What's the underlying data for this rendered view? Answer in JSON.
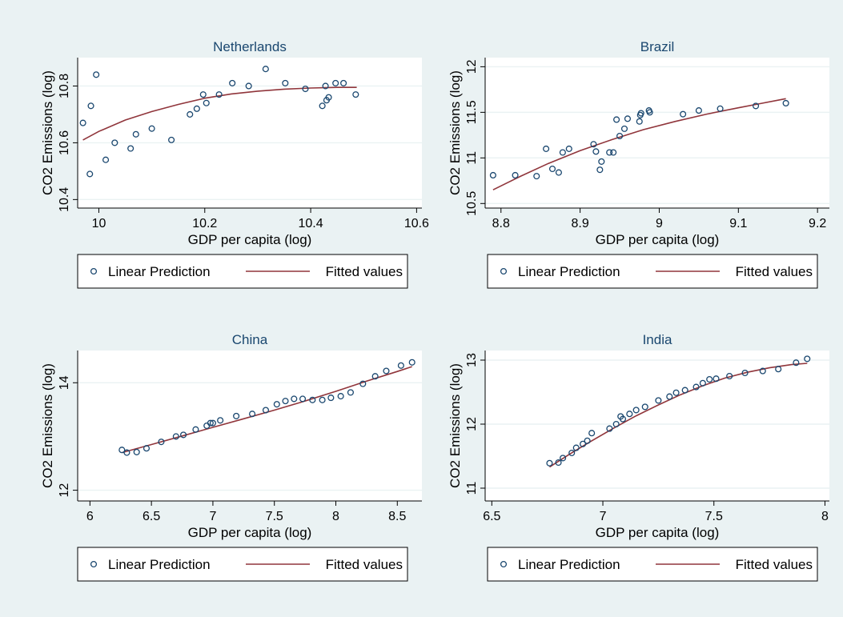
{
  "colors": {
    "background": "#eaf2f3",
    "plot_area": "#ffffff",
    "marker": "#1a476f",
    "fit_line": "#90353b",
    "title": "#1a476f",
    "grid": "#eaf2f3"
  },
  "chart_data": [
    {
      "type": "scatter",
      "title": "Netherlands",
      "xlabel": "GDP per capita (log)",
      "ylabel": "CO2 Emissions (log)",
      "xlim": [
        9.96,
        10.61
      ],
      "ylim": [
        10.37,
        10.9
      ],
      "xticks": [
        10,
        10.2,
        10.4,
        10.6
      ],
      "xtick_labels": [
        "10",
        "10.2",
        "10.4",
        "10.6"
      ],
      "yticks": [
        10.4,
        10.6,
        10.8
      ],
      "ytick_labels": [
        "10.4",
        "10.6",
        "10.8"
      ],
      "grid": true,
      "legend": [
        "Linear Prediction",
        "Fitted values"
      ],
      "points": [
        [
          9.97,
          10.67
        ],
        [
          9.985,
          10.73
        ],
        [
          9.995,
          10.84
        ],
        [
          9.983,
          10.49
        ],
        [
          10.013,
          10.54
        ],
        [
          10.03,
          10.6
        ],
        [
          10.06,
          10.58
        ],
        [
          10.07,
          10.63
        ],
        [
          10.1,
          10.65
        ],
        [
          10.137,
          10.61
        ],
        [
          10.172,
          10.7
        ],
        [
          10.185,
          10.72
        ],
        [
          10.197,
          10.77
        ],
        [
          10.203,
          10.74
        ],
        [
          10.227,
          10.77
        ],
        [
          10.252,
          10.81
        ],
        [
          10.283,
          10.8
        ],
        [
          10.315,
          10.86
        ],
        [
          10.352,
          10.81
        ],
        [
          10.39,
          10.79
        ],
        [
          10.422,
          10.73
        ],
        [
          10.428,
          10.8
        ],
        [
          10.43,
          10.75
        ],
        [
          10.434,
          10.76
        ],
        [
          10.447,
          10.81
        ],
        [
          10.462,
          10.81
        ],
        [
          10.485,
          10.77
        ]
      ],
      "fit": [
        [
          9.97,
          10.61
        ],
        [
          10.0,
          10.64
        ],
        [
          10.05,
          10.68
        ],
        [
          10.1,
          10.71
        ],
        [
          10.15,
          10.735
        ],
        [
          10.2,
          10.757
        ],
        [
          10.25,
          10.772
        ],
        [
          10.3,
          10.782
        ],
        [
          10.35,
          10.789
        ],
        [
          10.4,
          10.793
        ],
        [
          10.45,
          10.795
        ],
        [
          10.487,
          10.795
        ]
      ]
    },
    {
      "type": "scatter",
      "title": "Brazil",
      "xlabel": "GDP per capita (log)",
      "ylabel": "CO2 Emissions (log)",
      "xlim": [
        8.78,
        9.215
      ],
      "ylim": [
        10.45,
        12.1
      ],
      "xticks": [
        8.8,
        8.9,
        9,
        9.1,
        9.2
      ],
      "xtick_labels": [
        "8.8",
        "8.9",
        "9",
        "9.1",
        "9.2"
      ],
      "yticks": [
        10.5,
        11,
        11.5,
        12
      ],
      "ytick_labels": [
        "10.5",
        "11",
        "11.5",
        "12"
      ],
      "grid": true,
      "legend": [
        "Linear Prediction",
        "Fitted values"
      ],
      "points": [
        [
          8.79,
          10.81
        ],
        [
          8.818,
          10.81
        ],
        [
          8.845,
          10.8
        ],
        [
          8.857,
          11.1
        ],
        [
          8.865,
          10.88
        ],
        [
          8.873,
          10.84
        ],
        [
          8.878,
          11.06
        ],
        [
          8.886,
          11.1
        ],
        [
          8.917,
          11.15
        ],
        [
          8.92,
          11.07
        ],
        [
          8.925,
          10.87
        ],
        [
          8.927,
          10.96
        ],
        [
          8.937,
          11.06
        ],
        [
          8.942,
          11.06
        ],
        [
          8.946,
          11.42
        ],
        [
          8.95,
          11.24
        ],
        [
          8.956,
          11.32
        ],
        [
          8.96,
          11.43
        ],
        [
          8.975,
          11.4
        ],
        [
          8.976,
          11.47
        ],
        [
          8.977,
          11.49
        ],
        [
          8.987,
          11.52
        ],
        [
          8.988,
          11.5
        ],
        [
          9.03,
          11.48
        ],
        [
          9.05,
          11.52
        ],
        [
          9.077,
          11.54
        ],
        [
          9.122,
          11.57
        ],
        [
          9.16,
          11.6
        ]
      ],
      "fit": [
        [
          8.79,
          10.65
        ],
        [
          8.825,
          10.8
        ],
        [
          8.86,
          10.94
        ],
        [
          8.9,
          11.08
        ],
        [
          8.94,
          11.2
        ],
        [
          8.98,
          11.31
        ],
        [
          9.02,
          11.4
        ],
        [
          9.06,
          11.48
        ],
        [
          9.1,
          11.55
        ],
        [
          9.13,
          11.6
        ],
        [
          9.16,
          11.65
        ]
      ]
    },
    {
      "type": "scatter",
      "title": "China",
      "xlabel": "GDP per capita (log)",
      "ylabel": "CO2 Emissions (log)",
      "xlim": [
        5.9,
        8.7
      ],
      "ylim": [
        11.8,
        14.6
      ],
      "xticks": [
        6,
        6.5,
        7,
        7.5,
        8,
        8.5
      ],
      "xtick_labels": [
        "6",
        "6.5",
        "7",
        "7.5",
        "8",
        "8.5"
      ],
      "yticks": [
        12,
        14
      ],
      "ytick_labels": [
        "12",
        "14"
      ],
      "grid": true,
      "legend": [
        "Linear Prediction",
        "Fitted values"
      ],
      "points": [
        [
          6.26,
          12.75
        ],
        [
          6.3,
          12.7
        ],
        [
          6.38,
          12.71
        ],
        [
          6.46,
          12.78
        ],
        [
          6.58,
          12.9
        ],
        [
          6.7,
          13.0
        ],
        [
          6.76,
          13.03
        ],
        [
          6.86,
          13.13
        ],
        [
          6.95,
          13.2
        ],
        [
          6.98,
          13.25
        ],
        [
          7.0,
          13.25
        ],
        [
          7.06,
          13.3
        ],
        [
          7.19,
          13.38
        ],
        [
          7.32,
          13.42
        ],
        [
          7.43,
          13.49
        ],
        [
          7.52,
          13.6
        ],
        [
          7.59,
          13.66
        ],
        [
          7.66,
          13.7
        ],
        [
          7.73,
          13.7
        ],
        [
          7.81,
          13.68
        ],
        [
          7.89,
          13.68
        ],
        [
          7.96,
          13.72
        ],
        [
          8.04,
          13.75
        ],
        [
          8.12,
          13.82
        ],
        [
          8.22,
          13.98
        ],
        [
          8.32,
          14.12
        ],
        [
          8.41,
          14.22
        ],
        [
          8.53,
          14.32
        ],
        [
          8.62,
          14.38
        ]
      ],
      "fit": [
        [
          6.26,
          12.7
        ],
        [
          6.5,
          12.85
        ],
        [
          6.75,
          13.01
        ],
        [
          7.0,
          13.17
        ],
        [
          7.25,
          13.33
        ],
        [
          7.5,
          13.49
        ],
        [
          7.75,
          13.66
        ],
        [
          8.0,
          13.84
        ],
        [
          8.25,
          14.03
        ],
        [
          8.5,
          14.21
        ],
        [
          8.62,
          14.3
        ]
      ]
    },
    {
      "type": "scatter",
      "title": "India",
      "xlabel": "GDP per capita (log)",
      "ylabel": "CO2 Emissions (log)",
      "xlim": [
        6.47,
        8.02
      ],
      "ylim": [
        10.8,
        13.15
      ],
      "xticks": [
        6.5,
        7,
        7.5,
        8
      ],
      "xtick_labels": [
        "6.5",
        "7",
        "7.5",
        "8"
      ],
      "yticks": [
        11,
        12,
        13
      ],
      "ytick_labels": [
        "11",
        "12",
        "13"
      ],
      "grid": true,
      "legend": [
        "Linear Prediction",
        "Fitted values"
      ],
      "points": [
        [
          6.76,
          11.39
        ],
        [
          6.8,
          11.4
        ],
        [
          6.82,
          11.47
        ],
        [
          6.86,
          11.55
        ],
        [
          6.88,
          11.63
        ],
        [
          6.91,
          11.69
        ],
        [
          6.93,
          11.74
        ],
        [
          6.95,
          11.86
        ],
        [
          7.03,
          11.93
        ],
        [
          7.06,
          12.0
        ],
        [
          7.08,
          12.12
        ],
        [
          7.09,
          12.08
        ],
        [
          7.12,
          12.16
        ],
        [
          7.15,
          12.22
        ],
        [
          7.19,
          12.27
        ],
        [
          7.25,
          12.37
        ],
        [
          7.3,
          12.43
        ],
        [
          7.33,
          12.49
        ],
        [
          7.37,
          12.53
        ],
        [
          7.42,
          12.58
        ],
        [
          7.45,
          12.64
        ],
        [
          7.48,
          12.7
        ],
        [
          7.51,
          12.71
        ],
        [
          7.57,
          12.75
        ],
        [
          7.64,
          12.8
        ],
        [
          7.72,
          12.83
        ],
        [
          7.79,
          12.86
        ],
        [
          7.87,
          12.96
        ],
        [
          7.92,
          13.02
        ]
      ],
      "fit": [
        [
          6.76,
          11.33
        ],
        [
          6.85,
          11.53
        ],
        [
          6.95,
          11.74
        ],
        [
          7.05,
          11.94
        ],
        [
          7.15,
          12.13
        ],
        [
          7.25,
          12.3
        ],
        [
          7.35,
          12.46
        ],
        [
          7.45,
          12.6
        ],
        [
          7.55,
          12.72
        ],
        [
          7.65,
          12.81
        ],
        [
          7.75,
          12.88
        ],
        [
          7.85,
          12.93
        ],
        [
          7.92,
          12.95
        ]
      ]
    }
  ]
}
